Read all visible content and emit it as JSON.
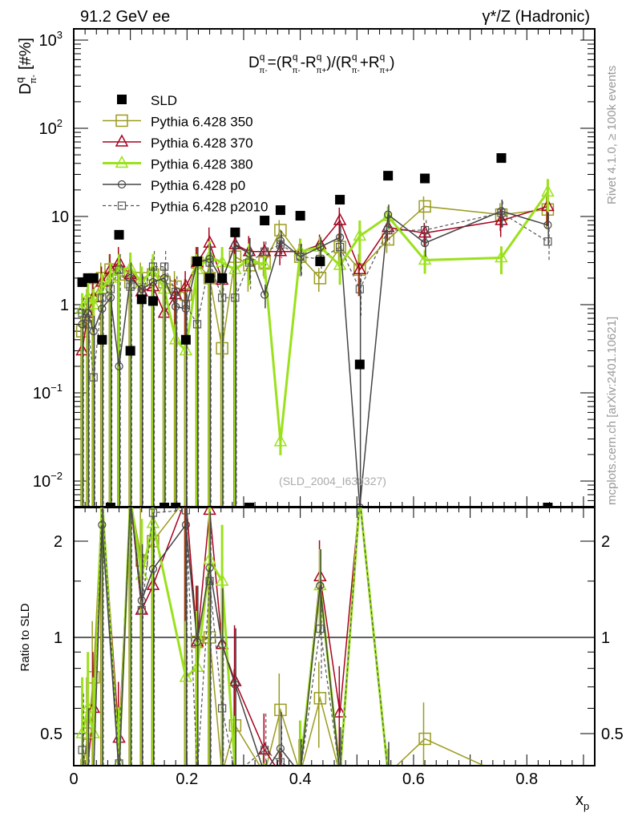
{
  "chart_data": [
    {
      "type": "scatter",
      "panel": "main",
      "header_left": "91.2 GeV ee",
      "header_right": "γ*/Z (Hadronic)",
      "title": "D^q_π- = (R^q_π- - R^q_π+)/(R^q_π- + R^q_π+)",
      "title_parts": {
        "D": "D",
        "q": "q",
        "pim": "π-",
        "eq": "=(R",
        "minus": "-R",
        "pip": "π+",
        "mid": ")/(R",
        "plus": "+R",
        "end": ")"
      },
      "ylabel": "D",
      "ylabel_sup": "q",
      "ylabel_sub": "π-",
      "ylabel_unit": "[#%]",
      "yscale": "log",
      "ylim": [
        0.005,
        1300
      ],
      "xlim": [
        0,
        0.92
      ],
      "ytick_labels": [
        {
          "v": 0.01,
          "base": "10",
          "exp": "−2"
        },
        {
          "v": 0.1,
          "base": "10",
          "exp": "−1"
        },
        {
          "v": 1,
          "base": "1",
          "exp": ""
        },
        {
          "v": 10,
          "base": "10",
          "exp": ""
        },
        {
          "v": 100,
          "base": "10",
          "exp": "2"
        },
        {
          "v": 1000,
          "base": "10",
          "exp": "3"
        }
      ],
      "watermark": "(SLD_2004_I630327)",
      "legend_position": "top-left",
      "x": [
        0.015,
        0.025,
        0.035,
        0.05,
        0.065,
        0.08,
        0.1,
        0.12,
        0.14,
        0.16,
        0.18,
        0.198,
        0.218,
        0.24,
        0.262,
        0.285,
        0.31,
        0.337,
        0.365,
        0.4,
        0.435,
        0.47,
        0.505,
        0.555,
        0.62,
        0.755,
        0.837
      ],
      "rel_err": [
        2,
        2,
        2,
        2,
        2,
        2,
        2,
        2,
        2,
        2,
        2,
        2,
        2,
        2,
        2,
        2,
        0.5,
        0.3,
        0.3,
        0.4,
        0.3,
        0.4,
        0.5,
        0.3,
        0.3,
        0.35,
        0.4
      ],
      "series": [
        {
          "name": "SLD",
          "color": "#000000",
          "marker": "filled-square",
          "dash": "",
          "width": 0,
          "values": [
            1.8,
            2.0,
            2.0,
            0.4,
            0,
            6.2,
            0.3,
            1.15,
            1.1,
            0,
            0,
            0.4,
            3.1,
            2.0,
            2.0,
            6.6,
            0,
            9,
            11.8,
            10.2,
            3.1,
            15.5,
            0.21,
            29,
            27,
            46,
            0
          ]
        },
        {
          "name": "Pythia 6.428 350",
          "color": "#9b9b1f",
          "marker": "open-square",
          "dash": "",
          "width": 1.5,
          "values": [
            0.5,
            1.0,
            1.5,
            2.0,
            2.5,
            2.2,
            1.8,
            2.0,
            2.2,
            1.8,
            1.6,
            1.3,
            3.0,
            2.0,
            0.32,
            3.5,
            2.8,
            3.0,
            7.0,
            3.5,
            2.0,
            4.5,
            2.5,
            5.5,
            13,
            10.5,
            12
          ]
        },
        {
          "name": "Pythia 6.428 370",
          "color": "#a8001f",
          "marker": "open-triangle",
          "dash": "",
          "width": 1.5,
          "values": [
            0.3,
            0.8,
            1.2,
            1.8,
            2.5,
            3.0,
            2.2,
            1.4,
            1.6,
            0.8,
            1.3,
            1.6,
            3.0,
            5.0,
            1.9,
            4.8,
            4.0,
            4.0,
            4.0,
            4.0,
            4.8,
            9.0,
            2.5,
            7.5,
            6.5,
            9.0,
            13
          ]
        },
        {
          "name": "Pythia 6.428 380",
          "color": "#9be11c",
          "marker": "open-triangle",
          "dash": "",
          "width": 3,
          "values": [
            0.9,
            1.2,
            1.0,
            1.5,
            2.0,
            2.5,
            2.6,
            1.8,
            2.5,
            1.5,
            0.4,
            0.3,
            2.5,
            3.5,
            3.0,
            2.5,
            3.3,
            2.8,
            0.028,
            4.0,
            4.5,
            2.8,
            6.0,
            10,
            3.2,
            3.4,
            19
          ]
        },
        {
          "name": "Pythia 6.428 p0",
          "color": "#444444",
          "marker": "open-circle",
          "dash": "",
          "width": 1.5,
          "values": [
            0.6,
            0.8,
            0.5,
            0.9,
            1.2,
            0.2,
            2.0,
            1.5,
            1.8,
            2.0,
            0.95,
            0.9,
            3.0,
            3.3,
            1.9,
            4.7,
            3.8,
            1.3,
            5.3,
            3.5,
            4.5,
            5.8,
            0,
            10.5,
            5.0,
            11.5,
            8.0
          ]
        },
        {
          "name": "Pythia 6.428 p2010",
          "color": "#555555",
          "marker": "open-small-square",
          "dash": "4,3",
          "width": 1.2,
          "values": [
            0.8,
            0.6,
            0.15,
            1.2,
            1.5,
            2.5,
            1.6,
            1.4,
            2.7,
            2.7,
            1.4,
            1.0,
            0.6,
            3.0,
            1.2,
            1.2,
            3.0,
            4.0,
            4.8,
            3.5,
            3.3,
            4.5,
            1.5,
            7.0,
            7.0,
            11,
            5.2
          ]
        }
      ]
    },
    {
      "type": "line",
      "panel": "ratio",
      "ylabel": "Ratio to SLD",
      "xlabel": "x",
      "xlabel_sub": "p",
      "yscale": "log",
      "ylim": [
        0.4,
        2.55
      ],
      "ytick_labels": [
        "0.5",
        "1",
        "2"
      ],
      "ytick_values": [
        0.5,
        1,
        2
      ],
      "xtick_labels": [
        "0",
        "0.2",
        "0.4",
        "0.6",
        "0.8"
      ],
      "xtick_values": [
        0,
        0.2,
        0.4,
        0.6,
        0.8
      ],
      "reference": "SLD"
    }
  ],
  "side_text": {
    "rivet": "Rivet 4.1.0, ≥ 100k events",
    "mcplots": "mcplots.cern.ch [arXiv:2401.10621]"
  }
}
